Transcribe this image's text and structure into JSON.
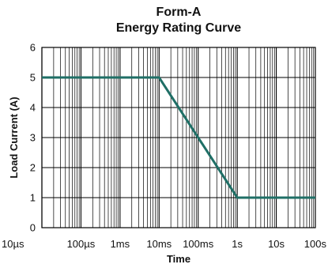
{
  "chart_data": {
    "type": "line",
    "title_lines": [
      "Form-A",
      "Energy Rating Curve"
    ],
    "xlabel": "Time",
    "ylabel": "Load Current (A)",
    "x_scale": "log",
    "x_ticks": [
      {
        "value": 1e-05,
        "label": "10µs"
      },
      {
        "value": 0.0001,
        "label": "100µs"
      },
      {
        "value": 0.001,
        "label": "1ms"
      },
      {
        "value": 0.01,
        "label": "10ms"
      },
      {
        "value": 0.1,
        "label": "100ms"
      },
      {
        "value": 1,
        "label": "1s"
      },
      {
        "value": 10,
        "label": "10s"
      },
      {
        "value": 100,
        "label": "100s"
      }
    ],
    "xlim": [
      1e-05,
      100
    ],
    "ylim": [
      0,
      6
    ],
    "y_ticks": [
      "0",
      "1",
      "2",
      "3",
      "4",
      "5",
      "6"
    ],
    "grid": true,
    "series": [
      {
        "color": "#1f6f66",
        "x": [
          1e-05,
          0.01,
          1,
          100
        ],
        "y": [
          5,
          5,
          1,
          1
        ]
      }
    ]
  }
}
